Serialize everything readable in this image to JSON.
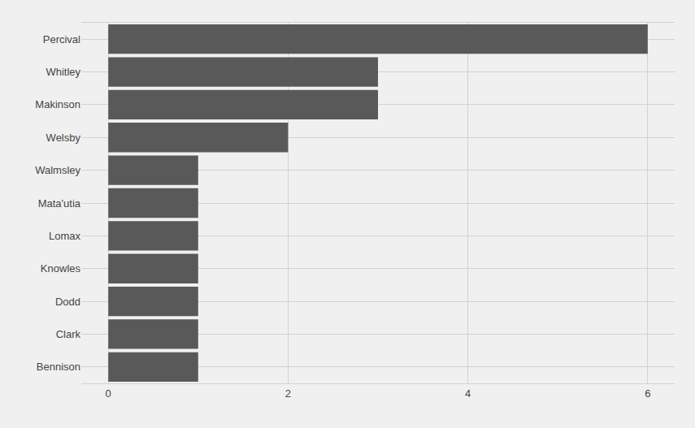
{
  "chart_data": {
    "type": "bar",
    "orientation": "horizontal",
    "categories": [
      "Percival",
      "Whitley",
      "Makinson",
      "Welsby",
      "Walmsley",
      "Mata'utia",
      "Lomax",
      "Knowles",
      "Dodd",
      "Clark",
      "Bennison"
    ],
    "values": [
      6,
      3,
      3,
      2,
      1,
      1,
      1,
      1,
      1,
      1,
      1
    ],
    "color": "#595959",
    "xlim": [
      -0.3,
      6.3
    ],
    "xticks": [
      0,
      2,
      4,
      6
    ],
    "grid": true
  }
}
